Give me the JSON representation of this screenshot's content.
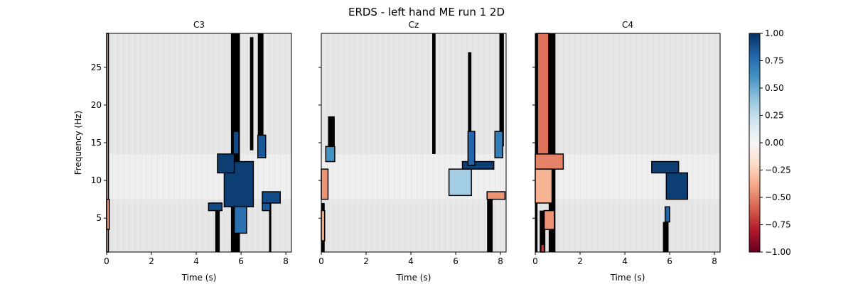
{
  "figure": {
    "title": "ERDS - left hand ME run 1 2D"
  },
  "chart_data": {
    "type": "heatmap",
    "title": "ERDS - left hand ME run 1 2D",
    "panels": [
      {
        "name": "C3",
        "xlabel": "Time (s)",
        "ylabel": "Frequency (Hz)",
        "xlim": [
          0,
          8.25
        ],
        "ylim": [
          0.5,
          29.5
        ],
        "xticks": [
          0,
          2,
          4,
          6,
          8
        ],
        "yticks": [
          5,
          10,
          15,
          20,
          25
        ],
        "significant_regions": [
          {
            "t0": 0.0,
            "t1": 0.08,
            "f0": 0.5,
            "f1": 29.5,
            "value": -0.3
          },
          {
            "t0": 0.0,
            "t1": 0.12,
            "f0": 3.5,
            "f1": 7.5,
            "value": -0.45
          },
          {
            "t0": 5.25,
            "t1": 6.55,
            "f0": 6.5,
            "f1": 12.5,
            "value": 0.95
          },
          {
            "t0": 4.95,
            "t1": 5.7,
            "f0": 11.0,
            "f1": 13.5,
            "value": 0.95
          },
          {
            "t0": 4.55,
            "t1": 5.15,
            "f0": 6.0,
            "f1": 7.0,
            "value": 0.9
          },
          {
            "t0": 5.7,
            "t1": 6.25,
            "f0": 3.0,
            "f1": 6.5,
            "value": 0.75
          },
          {
            "t0": 5.65,
            "t1": 5.9,
            "f0": 13.5,
            "f1": 16.5,
            "value": 0.9
          },
          {
            "t0": 6.75,
            "t1": 7.1,
            "f0": 13.0,
            "f1": 16.0,
            "value": 0.85
          },
          {
            "t0": 6.95,
            "t1": 7.75,
            "f0": 7.0,
            "f1": 8.5,
            "value": 0.9
          },
          {
            "t0": 6.95,
            "t1": 7.3,
            "f0": 6.0,
            "f1": 7.0,
            "value": 0.85
          }
        ],
        "mask_columns": [
          {
            "t0": 0.0,
            "t1": 0.1,
            "f0": 0.5,
            "f1": 29.5
          },
          {
            "t0": 4.85,
            "t1": 5.05,
            "f0": 0.5,
            "f1": 7.0
          },
          {
            "t0": 5.55,
            "t1": 5.95,
            "f0": 0.5,
            "f1": 29.5
          },
          {
            "t0": 6.4,
            "t1": 6.55,
            "f0": 14.0,
            "f1": 29.0
          },
          {
            "t0": 6.75,
            "t1": 7.0,
            "f0": 13.0,
            "f1": 29.5
          },
          {
            "t0": 7.25,
            "t1": 7.35,
            "f0": 0.5,
            "f1": 7.0
          }
        ]
      },
      {
        "name": "Cz",
        "xlabel": "Time (s)",
        "ylabel": "",
        "xlim": [
          0,
          8.25
        ],
        "ylim": [
          0.5,
          29.5
        ],
        "xticks": [
          0,
          2,
          4,
          6,
          8
        ],
        "yticks": [
          5,
          10,
          15,
          20,
          25
        ],
        "significant_regions": [
          {
            "t0": 0.0,
            "t1": 0.3,
            "f0": 7.5,
            "f1": 11.5,
            "value": -0.45
          },
          {
            "t0": 0.0,
            "t1": 0.15,
            "f0": 2.0,
            "f1": 6.0,
            "value": -0.4
          },
          {
            "t0": 0.2,
            "t1": 0.6,
            "f0": 12.5,
            "f1": 14.5,
            "value": 0.6
          },
          {
            "t0": 5.7,
            "t1": 6.7,
            "f0": 8.0,
            "f1": 11.5,
            "value": 0.35
          },
          {
            "t0": 6.3,
            "t1": 7.7,
            "f0": 11.5,
            "f1": 12.5,
            "value": 0.95
          },
          {
            "t0": 6.55,
            "t1": 6.85,
            "f0": 12.0,
            "f1": 16.5,
            "value": 0.8
          },
          {
            "t0": 7.4,
            "t1": 8.2,
            "f0": 7.5,
            "f1": 8.5,
            "value": -0.45
          },
          {
            "t0": 7.75,
            "t1": 8.1,
            "f0": 13.0,
            "f1": 16.5,
            "value": 0.7
          }
        ],
        "mask_columns": [
          {
            "t0": 0.0,
            "t1": 0.15,
            "f0": 0.5,
            "f1": 7.0
          },
          {
            "t0": 0.3,
            "t1": 0.6,
            "f0": 14.0,
            "f1": 18.5
          },
          {
            "t0": 4.95,
            "t1": 5.1,
            "f0": 13.5,
            "f1": 29.5
          },
          {
            "t0": 6.55,
            "t1": 6.7,
            "f0": 16.0,
            "f1": 27.0
          },
          {
            "t0": 7.4,
            "t1": 7.65,
            "f0": 0.5,
            "f1": 7.5
          },
          {
            "t0": 7.95,
            "t1": 8.15,
            "f0": 14.5,
            "f1": 29.5
          }
        ]
      },
      {
        "name": "C4",
        "xlabel": "Time (s)",
        "ylabel": "",
        "xlim": [
          0,
          8.25
        ],
        "ylim": [
          0.5,
          29.5
        ],
        "xticks": [
          0,
          2,
          4,
          6,
          8
        ],
        "yticks": [
          5,
          10,
          15,
          20,
          25
        ],
        "significant_regions": [
          {
            "t0": 0.1,
            "t1": 0.6,
            "f0": 13.5,
            "f1": 29.5,
            "value": -0.55
          },
          {
            "t0": 0.0,
            "t1": 1.25,
            "f0": 11.5,
            "f1": 13.5,
            "value": -0.5
          },
          {
            "t0": 0.0,
            "t1": 0.75,
            "f0": 7.0,
            "f1": 11.5,
            "value": -0.35
          },
          {
            "t0": 0.4,
            "t1": 0.85,
            "f0": 3.5,
            "f1": 6.0,
            "value": -0.45
          },
          {
            "t0": 0.25,
            "t1": 0.4,
            "f0": 0.5,
            "f1": 1.5,
            "value": -0.7
          },
          {
            "t0": 5.2,
            "t1": 6.4,
            "f0": 11.0,
            "f1": 12.5,
            "value": 0.95
          },
          {
            "t0": 5.85,
            "t1": 6.8,
            "f0": 7.5,
            "f1": 11.0,
            "value": 0.95
          },
          {
            "t0": 5.8,
            "t1": 6.0,
            "f0": 4.5,
            "f1": 6.5,
            "value": 0.8
          }
        ],
        "mask_columns": [
          {
            "t0": 0.0,
            "t1": 0.1,
            "f0": 0.5,
            "f1": 29.5
          },
          {
            "t0": 0.2,
            "t1": 0.45,
            "f0": 0.5,
            "f1": 6.0
          },
          {
            "t0": 0.6,
            "t1": 0.9,
            "f0": 0.5,
            "f1": 29.5
          },
          {
            "t0": 5.7,
            "t1": 5.95,
            "f0": 0.5,
            "f1": 4.5
          }
        ]
      }
    ],
    "colorbar": {
      "vmin": -1.0,
      "vmax": 1.0,
      "ticks": [
        "1.00",
        "0.75",
        "0.50",
        "0.25",
        "0.00",
        "−0.25",
        "−0.50",
        "−0.75",
        "−1.00"
      ],
      "colormap": "RdBu",
      "colors": [
        "#67001f",
        "#b2182b",
        "#d6604d",
        "#f4a582",
        "#fddbc7",
        "#f7f7f7",
        "#d1e5f0",
        "#92c5de",
        "#4393c3",
        "#2166ac",
        "#053061"
      ]
    },
    "grid": false,
    "background_color": "#e6e6e6",
    "mask_color": "#000000"
  }
}
